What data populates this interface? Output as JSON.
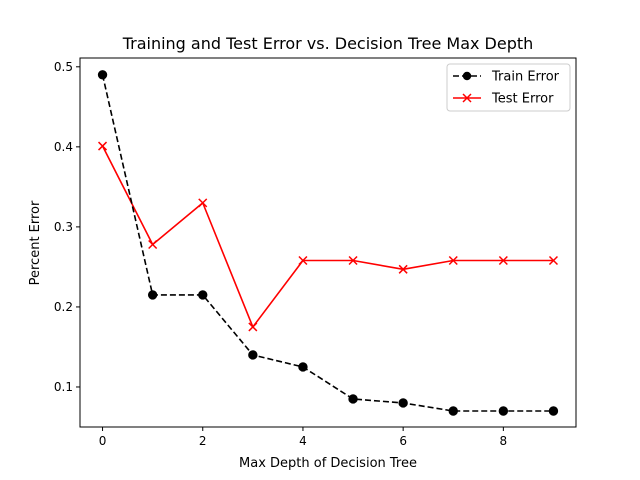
{
  "chart_data": {
    "type": "line",
    "title": "Training and Test Error vs. Decision Tree Max Depth",
    "xlabel": "Max Depth of Decision Tree",
    "ylabel": "Percent Error",
    "xlim": [
      -0.45,
      9.45
    ],
    "ylim": [
      0.05,
      0.511
    ],
    "x_ticks": [
      0,
      2,
      4,
      6,
      8
    ],
    "y_ticks": [
      0.1,
      0.2,
      0.3,
      0.4,
      0.5
    ],
    "x_tick_labels": [
      "0",
      "2",
      "4",
      "6",
      "8"
    ],
    "y_tick_labels": [
      "0.1",
      "0.2",
      "0.3",
      "0.4",
      "0.5"
    ],
    "grid": false,
    "legend_position": "top-right",
    "x": [
      0,
      1,
      2,
      3,
      4,
      5,
      6,
      7,
      8,
      9
    ],
    "series": [
      {
        "name": "Train Error",
        "values": [
          0.49,
          0.215,
          0.215,
          0.14,
          0.125,
          0.085,
          0.08,
          0.07,
          0.07,
          0.07
        ],
        "color": "#000000",
        "line_style": "dashed",
        "marker": "circle"
      },
      {
        "name": "Test Error",
        "values": [
          0.401,
          0.278,
          0.33,
          0.175,
          0.258,
          0.258,
          0.247,
          0.258,
          0.258,
          0.258
        ],
        "color": "#ff0000",
        "line_style": "solid",
        "marker": "x"
      }
    ]
  }
}
